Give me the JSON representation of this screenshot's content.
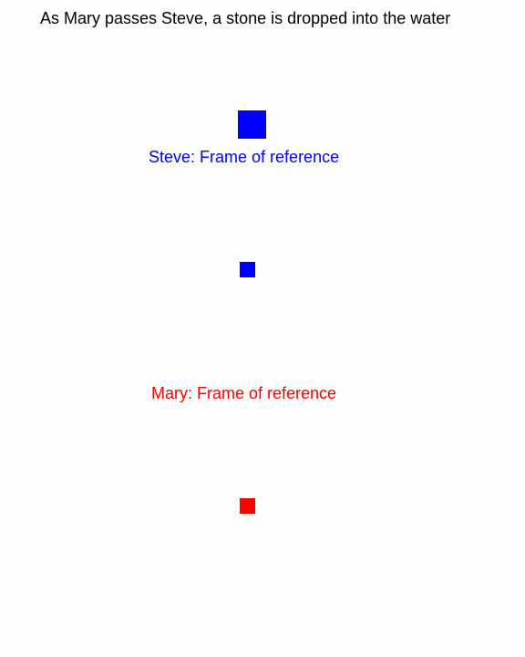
{
  "title": "As Mary passes Steve, a stone is dropped into the water",
  "steve": {
    "label": "Steve: Frame of reference",
    "color": "#0000ff"
  },
  "mary": {
    "label": "Mary: Frame of reference",
    "color": "#ff0000"
  }
}
